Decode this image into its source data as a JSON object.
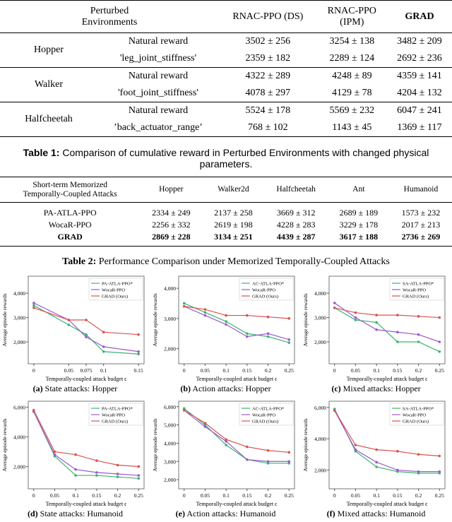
{
  "table1": {
    "header": [
      "Perturbed\nEnvironments",
      "RNAC-PPO (DS)",
      "RNAC-PPO\n(IPM)",
      "GRAD"
    ],
    "groups": [
      {
        "env": "Hopper",
        "rows": [
          [
            "Natural reward",
            "3502 ± 256",
            "3254 ± 138",
            "3482 ± 209"
          ],
          [
            "'leg_joint_stiffness'",
            "2359 ± 182",
            "2289 ± 124",
            "2692 ± 236"
          ]
        ]
      },
      {
        "env": "Walker",
        "rows": [
          [
            "Natural reward",
            "4322 ± 289",
            "4248 ± 89",
            "4359 ± 141"
          ],
          [
            "'foot_joint_stiffness'",
            "4078 ± 297",
            "4129 ± 78",
            "4204 ± 132"
          ]
        ]
      },
      {
        "env": "Halfcheetah",
        "rows": [
          [
            "Natural reward",
            "5524 ± 178",
            "5569 ± 232",
            "6047 ± 241"
          ],
          [
            "’back_actuator_range’",
            "768 ± 102",
            "1143 ± 45",
            "1369 ± 117"
          ]
        ]
      }
    ],
    "caption": {
      "label": "Table 1:",
      "text": "Comparison of cumulative reward in Perturbed Environments with changed physical parameters."
    }
  },
  "table2": {
    "header": [
      "Short-term Memorized\nTemporally-Coupled Attacks",
      "Hopper",
      "Walker2d",
      "Halfcheetah",
      "Ant",
      "Humanoid"
    ],
    "rows": [
      [
        "PA-ATLA-PPO",
        "2334 ± 249",
        "2137 ± 258",
        "3669 ± 312",
        "2689 ± 189",
        "1573 ± 232"
      ],
      [
        "WocaR-PPO",
        "2256 ± 332",
        "2619 ± 198",
        "4228 ± 283",
        "3229 ± 178",
        "2017 ± 213"
      ],
      [
        "GRAD",
        "2869 ± 228",
        "3134 ± 251",
        "4439 ± 287",
        "3617 ± 188",
        "2736 ± 269"
      ]
    ],
    "caption": {
      "label": "Table 2:",
      "text": "Performance Comparison under Memorized Temporally-Coupled Attacks"
    }
  },
  "chart_data": [
    {
      "type": "line",
      "caption_label": "(a)",
      "caption": "State attacks: Hopper",
      "xlabel": "Temporally-coupled attack budget ϵ",
      "ylabel": "Average episode rewards",
      "legend": "upper right",
      "x": [
        0,
        0.05,
        0.075,
        0.1,
        0.15
      ],
      "xlim": [
        -0.008,
        0.158
      ],
      "xticks": [
        0,
        0.05,
        0.075,
        0.1,
        0.15
      ],
      "ylim": [
        1100,
        4700
      ],
      "yticks": [
        {
          "value": 2000,
          "label": "2,000"
        },
        {
          "value": 3000,
          "label": "3,000"
        },
        {
          "value": 4000,
          "label": "4,000"
        }
      ],
      "series": [
        {
          "name": "PA-ATLA-PPO*",
          "color": "#3cb371",
          "values": [
            3500,
            2700,
            2300,
            1600,
            1500
          ]
        },
        {
          "name": "WocaR-PPO",
          "color": "#9b59d0",
          "values": [
            3600,
            2900,
            2200,
            1800,
            1600
          ]
        },
        {
          "name": "GRAD (Ours)",
          "color": "#d9534f",
          "values": [
            3400,
            2900,
            2900,
            2400,
            2300
          ]
        }
      ]
    },
    {
      "type": "line",
      "caption_label": "(b)",
      "caption": "Action attacks: Hopper",
      "xlabel": "Temporally-coupled attack budget ϵ",
      "ylabel": "Average episode rewards",
      "legend": "upper right",
      "x": [
        0,
        0.05,
        0.1,
        0.15,
        0.2,
        0.25
      ],
      "xlim": [
        -0.013,
        0.263
      ],
      "xticks": [
        0,
        0.05,
        0.1,
        0.15,
        0.2,
        0.25
      ],
      "ylim": [
        1500,
        4400
      ],
      "yticks": [
        {
          "value": 2000,
          "label": "2,000"
        },
        {
          "value": 3000,
          "label": "3,000"
        },
        {
          "value": 4000,
          "label": "4,000"
        }
      ],
      "series": [
        {
          "name": "AC-ATLA-PPO*",
          "color": "#3cb371",
          "values": [
            3500,
            3200,
            2900,
            2500,
            2400,
            2200
          ]
        },
        {
          "name": "WocaR-PPO",
          "color": "#9b59d0",
          "values": [
            3400,
            3100,
            2800,
            2400,
            2500,
            2300
          ]
        },
        {
          "name": "GRAD (Ours)",
          "color": "#d9534f",
          "values": [
            3400,
            3300,
            3100,
            3100,
            3050,
            3000
          ]
        }
      ]
    },
    {
      "type": "line",
      "caption_label": "(c)",
      "caption": "Mixed attacks: Hopper",
      "xlabel": "Temporally-coupled attack budget ϵ",
      "ylabel": "Average episode rewards",
      "legend": "upper right",
      "x": [
        0,
        0.05,
        0.1,
        0.15,
        0.2,
        0.25
      ],
      "xlim": [
        -0.013,
        0.263
      ],
      "xticks": [
        0,
        0.05,
        0.1,
        0.15,
        0.2,
        0.25
      ],
      "ylim": [
        1100,
        4700
      ],
      "yticks": [
        {
          "value": 2000,
          "label": "2,000"
        },
        {
          "value": 3000,
          "label": "3,000"
        },
        {
          "value": 4000,
          "label": "4,000"
        }
      ],
      "series": [
        {
          "name": "SA-ATLA-PPO*",
          "color": "#3cb371",
          "values": [
            3400,
            2900,
            2800,
            2000,
            2000,
            1600
          ]
        },
        {
          "name": "WocaR-PPO",
          "color": "#9b59d0",
          "values": [
            3600,
            3000,
            2500,
            2400,
            2300,
            2000
          ]
        },
        {
          "name": "GRAD (Ours)",
          "color": "#d9534f",
          "values": [
            3400,
            3200,
            3100,
            3100,
            3050,
            3000
          ]
        }
      ]
    },
    {
      "type": "line",
      "caption_label": "(d)",
      "caption": "State attacks: Humanoid",
      "xlabel": "Temporally-coupled attack budget ϵ",
      "ylabel": "Average episode rewards",
      "legend": "upper right",
      "x": [
        0,
        0.05,
        0.1,
        0.15,
        0.2,
        0.25
      ],
      "xlim": [
        -0.013,
        0.263
      ],
      "xticks": [
        0,
        0.05,
        0.1,
        0.15,
        0.2,
        0.25
      ],
      "ylim": [
        500,
        6400
      ],
      "yticks": [
        {
          "value": 2000,
          "label": "2,000"
        },
        {
          "value": 4000,
          "label": "4,000"
        },
        {
          "value": 6000,
          "label": "6,000"
        }
      ],
      "series": [
        {
          "name": "PA-ATLA-PPO*",
          "color": "#3cb371",
          "values": [
            5700,
            2700,
            1400,
            1400,
            1300,
            1200
          ]
        },
        {
          "name": "WocaR-PPO",
          "color": "#9b59d0",
          "values": [
            5700,
            2800,
            1800,
            1600,
            1500,
            1400
          ]
        },
        {
          "name": "GRAD (Ours)",
          "color": "#d9534f",
          "values": [
            5800,
            3000,
            2800,
            2400,
            2100,
            2000
          ]
        }
      ]
    },
    {
      "type": "line",
      "caption_label": "(e)",
      "caption": "Action attacks: Humanoid",
      "xlabel": "Temporally-coupled attack budget ϵ",
      "ylabel": "Average episode rewards",
      "legend": "upper right",
      "x": [
        0,
        0.05,
        0.1,
        0.15,
        0.2,
        0.25
      ],
      "xlim": [
        -0.013,
        0.263
      ],
      "xticks": [
        0,
        0.05,
        0.1,
        0.15,
        0.2,
        0.25
      ],
      "ylim": [
        1500,
        6300
      ],
      "yticks": [
        {
          "value": 2000,
          "label": "2,000"
        },
        {
          "value": 3000,
          "label": "3,000"
        },
        {
          "value": 4000,
          "label": "4,000"
        },
        {
          "value": 5000,
          "label": "5,000"
        },
        {
          "value": 6000,
          "label": "6,000"
        }
      ],
      "series": [
        {
          "name": "AC-ATLA-PPO*",
          "color": "#3cb371",
          "values": [
            5900,
            5000,
            3900,
            3100,
            2900,
            2900
          ]
        },
        {
          "name": "WocaR-PPO",
          "color": "#9b59d0",
          "values": [
            5800,
            4900,
            4100,
            3100,
            3000,
            3000
          ]
        },
        {
          "name": "GRAD (Ours)",
          "color": "#d9534f",
          "values": [
            5800,
            5100,
            4200,
            3800,
            3600,
            3500
          ]
        }
      ]
    },
    {
      "type": "line",
      "caption_label": "(f)",
      "caption": "Mixed attacks: Humanoid",
      "xlabel": "Temporally-coupled attack budget ϵ",
      "ylabel": "Average episode rewards",
      "legend": "upper right",
      "x": [
        0,
        0.05,
        0.1,
        0.15,
        0.2,
        0.25
      ],
      "xlim": [
        -0.013,
        0.263
      ],
      "xticks": [
        0,
        0.05,
        0.1,
        0.15,
        0.2,
        0.25
      ],
      "ylim": [
        800,
        6400
      ],
      "yticks": [
        {
          "value": 2000,
          "label": "2,000"
        },
        {
          "value": 4000,
          "label": "4,000"
        },
        {
          "value": 6000,
          "label": "6,000"
        }
      ],
      "series": [
        {
          "name": "SA-ATLA-PPO*",
          "color": "#3cb371",
          "values": [
            5900,
            3200,
            2200,
            1900,
            1800,
            1800
          ]
        },
        {
          "name": "WocaR-PPO",
          "color": "#9b59d0",
          "values": [
            5800,
            3300,
            2500,
            2000,
            1900,
            1900
          ]
        },
        {
          "name": "GRAD (Ours)",
          "color": "#d9534f",
          "values": [
            5800,
            3600,
            3300,
            3200,
            3000,
            2900
          ]
        }
      ]
    }
  ]
}
